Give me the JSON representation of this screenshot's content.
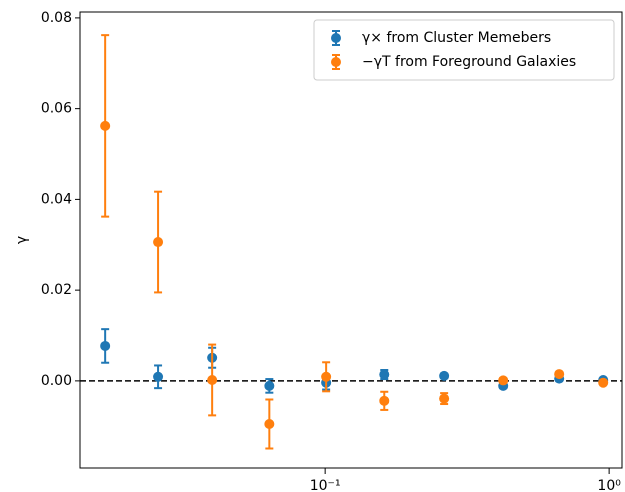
{
  "chart_data": {
    "type": "errorbar",
    "ylabel": "γ",
    "x": [
      0.0168,
      0.0258,
      0.04,
      0.0636,
      0.1008,
      0.1615,
      0.2624,
      0.4236,
      0.667,
      0.953
    ],
    "series": [
      {
        "name": "γ× from Cluster Memebers",
        "color": "#1f77b4",
        "values": [
          0.0077,
          0.0009,
          0.0051,
          -0.0011,
          -0.0004,
          0.0014,
          0.0011,
          -0.0011,
          0.0005,
          0.0002
        ],
        "errors": [
          0.0037,
          0.0025,
          0.0022,
          0.0015,
          0.0015,
          0.001,
          0.0005,
          0.0005,
          0.0004,
          0.0003
        ]
      },
      {
        "name": "−γT from Foreground Galaxies",
        "color": "#ff7f0e",
        "values": [
          0.0562,
          0.0306,
          0.0002,
          -0.0095,
          0.0009,
          -0.0044,
          -0.0039,
          0.0001,
          0.0015,
          -0.0004
        ],
        "errors": [
          0.02,
          0.0111,
          0.0078,
          0.0054,
          0.0032,
          0.002,
          0.0012,
          0.0005,
          0.0004,
          0.0003
        ]
      }
    ],
    "xscale": "log",
    "xlim": [
      0.0137,
      1.11
    ],
    "xticks": [
      {
        "value": 0.1,
        "label": "10⁻¹"
      },
      {
        "value": 1,
        "label": "10⁰"
      }
    ],
    "ylim": [
      -0.0192,
      0.0813
    ],
    "yticks": [
      {
        "value": 0,
        "label": "0.00"
      },
      {
        "value": 0.02,
        "label": "0.02"
      },
      {
        "value": 0.04,
        "label": "0.04"
      },
      {
        "value": 0.06,
        "label": "0.06"
      },
      {
        "value": 0.08,
        "label": "0.08"
      }
    ],
    "reference_line": 0,
    "legend": "upper right"
  }
}
